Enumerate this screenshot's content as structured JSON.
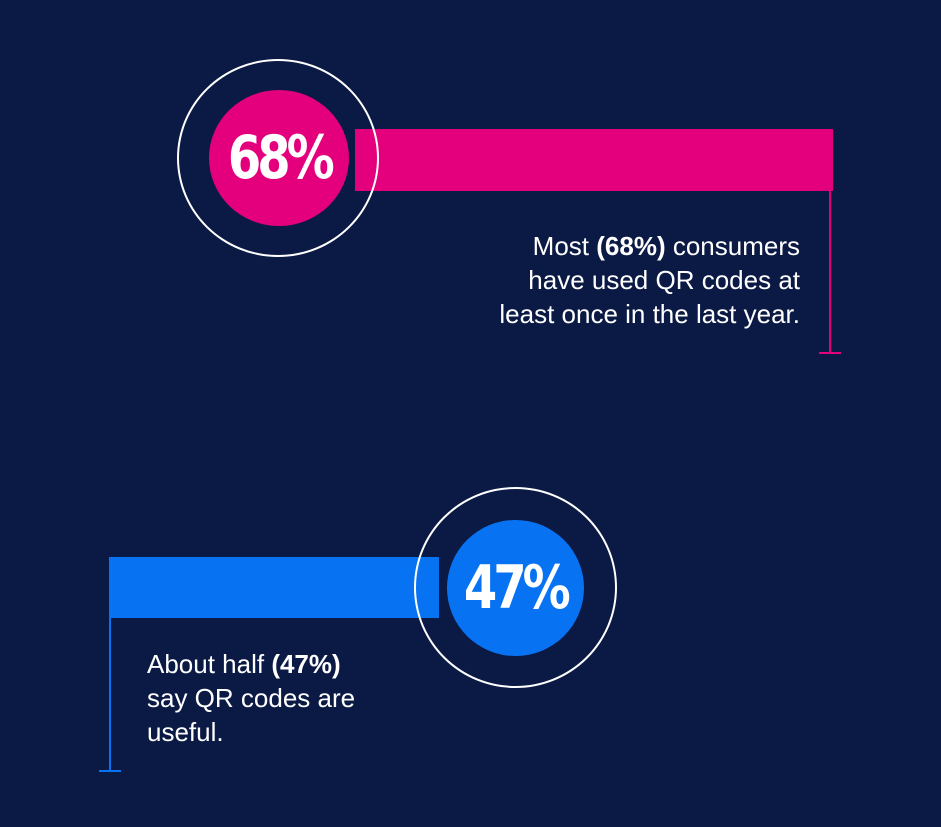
{
  "colors": {
    "background": "#0b1a45",
    "pink_accent": "#e4007c",
    "blue_accent": "#0873f2",
    "ring": "#ffffff",
    "text": "#ffffff"
  },
  "stats": [
    {
      "id": "used-qr-codes",
      "percent_label": "68%",
      "caption": {
        "lines": [
          [
            "Most ",
            "(68%)",
            " consumers"
          ],
          [
            "have used QR codes at"
          ],
          [
            "least once in the last year."
          ]
        ]
      }
    },
    {
      "id": "qr-codes-useful",
      "percent_label": "47%",
      "caption": {
        "lines": [
          [
            "About half ",
            "(47%)"
          ],
          [
            "say QR codes are"
          ],
          [
            "useful."
          ]
        ]
      }
    }
  ]
}
